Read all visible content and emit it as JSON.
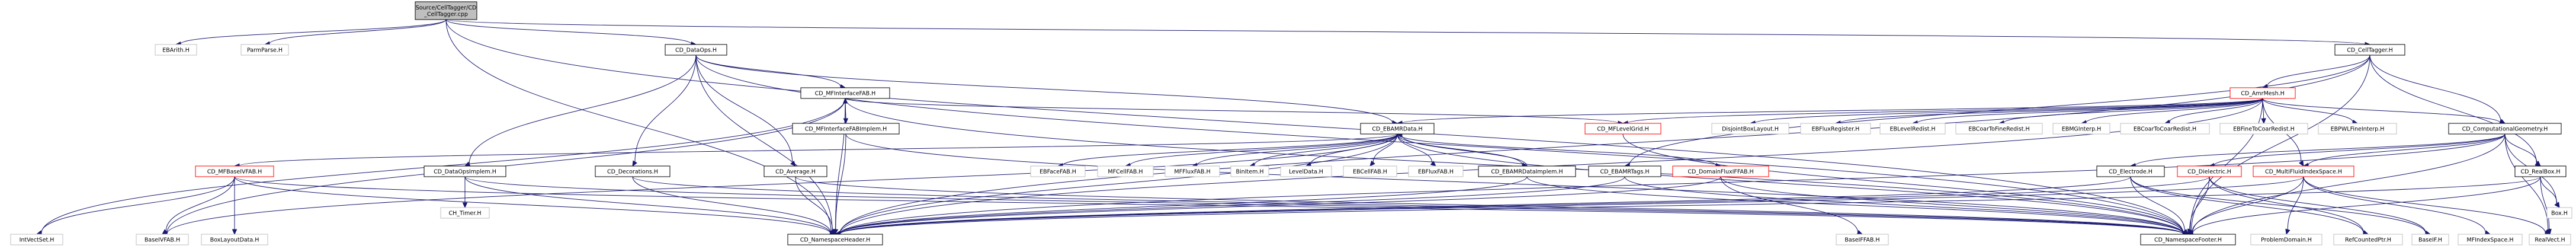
{
  "nodes": [
    {
      "id": "root",
      "lines": [
        "Source/CellTagger/CD",
        "_CellTagger.cpp"
      ],
      "kind": "root"
    },
    {
      "id": "EBArith",
      "lines": [
        "EBArith.H"
      ],
      "kind": "plain"
    },
    {
      "id": "ParmParse",
      "lines": [
        "ParmParse.H"
      ],
      "kind": "plain"
    },
    {
      "id": "CD_DataOps",
      "lines": [
        "CD_DataOps.H"
      ],
      "kind": "file"
    },
    {
      "id": "CD_CellTagger",
      "lines": [
        "CD_CellTagger.H"
      ],
      "kind": "file"
    },
    {
      "id": "CD_MFInterfaceFAB",
      "lines": [
        "CD_MFInterfaceFAB.H"
      ],
      "kind": "file"
    },
    {
      "id": "CD_AmrMesh",
      "lines": [
        "CD_AmrMesh.H"
      ],
      "kind": "red"
    },
    {
      "id": "CD_MFInterfaceFABImplem",
      "lines": [
        "CD_MFInterfaceFABImplem.H"
      ],
      "kind": "file"
    },
    {
      "id": "CD_EBAMRData",
      "lines": [
        "CD_EBAMRData.H"
      ],
      "kind": "file"
    },
    {
      "id": "CD_MFLevelGrid",
      "lines": [
        "CD_MFLevelGrid.H"
      ],
      "kind": "red"
    },
    {
      "id": "DisjointBoxLayout",
      "lines": [
        "DisjointBoxLayout.H"
      ],
      "kind": "plain"
    },
    {
      "id": "EBFluxRegister",
      "lines": [
        "EBFluxRegister.H"
      ],
      "kind": "plain"
    },
    {
      "id": "EBLevelRedist",
      "lines": [
        "EBLevelRedist.H"
      ],
      "kind": "plain"
    },
    {
      "id": "EBCoarToFineRedist",
      "lines": [
        "EBCoarToFineRedist.H"
      ],
      "kind": "plain"
    },
    {
      "id": "EBMGInterp",
      "lines": [
        "EBMGInterp.H"
      ],
      "kind": "plain"
    },
    {
      "id": "EBCoarToCoarRedist",
      "lines": [
        "EBCoarToCoarRedist.H"
      ],
      "kind": "plain"
    },
    {
      "id": "EBFineToCoarRedist",
      "lines": [
        "EBFineToCoarRedist.H"
      ],
      "kind": "plain"
    },
    {
      "id": "EBPWLFineInterp",
      "lines": [
        "EBPWLFineInterp.H"
      ],
      "kind": "plain"
    },
    {
      "id": "CD_ComputationalGeometry",
      "lines": [
        "CD_ComputationalGeometry.H"
      ],
      "kind": "file"
    },
    {
      "id": "CD_MFBaseIVFAB",
      "lines": [
        "CD_MFBaseIVFAB.H"
      ],
      "kind": "red"
    },
    {
      "id": "CD_DataOpsImplem",
      "lines": [
        "CD_DataOpsImplem.H"
      ],
      "kind": "file"
    },
    {
      "id": "CD_Decorations",
      "lines": [
        "CD_Decorations.H"
      ],
      "kind": "file"
    },
    {
      "id": "CD_Average",
      "lines": [
        "CD_Average.H"
      ],
      "kind": "file"
    },
    {
      "id": "EBFaceFAB",
      "lines": [
        "EBFaceFAB.H"
      ],
      "kind": "plain"
    },
    {
      "id": "MFCellFAB",
      "lines": [
        "MFCellFAB.H"
      ],
      "kind": "plain"
    },
    {
      "id": "MFFluxFAB",
      "lines": [
        "MFFluxFAB.H"
      ],
      "kind": "plain"
    },
    {
      "id": "BinItem",
      "lines": [
        "BinItem.H"
      ],
      "kind": "plain"
    },
    {
      "id": "LevelData",
      "lines": [
        "LevelData.H"
      ],
      "kind": "plain"
    },
    {
      "id": "EBCellFAB",
      "lines": [
        "EBCellFAB.H"
      ],
      "kind": "plain"
    },
    {
      "id": "EBFluxFAB",
      "lines": [
        "EBFluxFAB.H"
      ],
      "kind": "plain"
    },
    {
      "id": "CD_EBAMRDataImplem",
      "lines": [
        "CD_EBAMRDataImplem.H"
      ],
      "kind": "file"
    },
    {
      "id": "CD_EBAMRTags",
      "lines": [
        "CD_EBAMRTags.H"
      ],
      "kind": "file"
    },
    {
      "id": "CD_DomainFluxIFFAB",
      "lines": [
        "CD_DomainFluxIFFAB.H"
      ],
      "kind": "red"
    },
    {
      "id": "CD_Electrode",
      "lines": [
        "CD_Electrode.H"
      ],
      "kind": "file"
    },
    {
      "id": "CD_Dielectric",
      "lines": [
        "CD_Dielectric.H"
      ],
      "kind": "red"
    },
    {
      "id": "CD_MultiFluidIndexSpace",
      "lines": [
        "CD_MultiFluidIndexSpace.H"
      ],
      "kind": "red"
    },
    {
      "id": "CD_RealBox",
      "lines": [
        "CD_RealBox.H"
      ],
      "kind": "file"
    },
    {
      "id": "IntVectSet",
      "lines": [
        "IntVectSet.H"
      ],
      "kind": "plain"
    },
    {
      "id": "BaseIVFAB",
      "lines": [
        "BaseIVFAB.H"
      ],
      "kind": "plain"
    },
    {
      "id": "BoxLayoutData",
      "lines": [
        "BoxLayoutData.H"
      ],
      "kind": "plain"
    },
    {
      "id": "CH_Timer",
      "lines": [
        "CH_Timer.H"
      ],
      "kind": "plain"
    },
    {
      "id": "CD_NamespaceHeader",
      "lines": [
        "CD_NamespaceHeader.H"
      ],
      "kind": "file"
    },
    {
      "id": "BaseIFFAB",
      "lines": [
        "BaseIFFAB.H"
      ],
      "kind": "plain"
    },
    {
      "id": "CD_NamespaceFooter",
      "lines": [
        "CD_NamespaceFooter.H"
      ],
      "kind": "file"
    },
    {
      "id": "ProblemDomain",
      "lines": [
        "ProblemDomain.H"
      ],
      "kind": "plain"
    },
    {
      "id": "RefCountedPtr",
      "lines": [
        "RefCountedPtr.H"
      ],
      "kind": "plain"
    },
    {
      "id": "BaseIF",
      "lines": [
        "BaseIF.H"
      ],
      "kind": "plain"
    },
    {
      "id": "MFIndexSpace",
      "lines": [
        "MFIndexSpace.H"
      ],
      "kind": "plain"
    },
    {
      "id": "RealVect",
      "lines": [
        "RealVect.H"
      ],
      "kind": "plain"
    },
    {
      "id": "Box",
      "lines": [
        "Box.H"
      ],
      "kind": "plain"
    }
  ],
  "edges": [
    [
      "root",
      "EBArith"
    ],
    [
      "root",
      "ParmParse"
    ],
    [
      "root",
      "CD_DataOps"
    ],
    [
      "root",
      "CD_CellTagger"
    ],
    [
      "root",
      "CD_NamespaceHeader"
    ],
    [
      "root",
      "CD_NamespaceFooter"
    ],
    [
      "CD_DataOps",
      "CD_MFInterfaceFAB"
    ],
    [
      "CD_DataOps",
      "CD_EBAMRData"
    ],
    [
      "CD_DataOps",
      "CD_DataOpsImplem"
    ],
    [
      "CD_DataOps",
      "CD_Decorations"
    ],
    [
      "CD_DataOps",
      "CD_Average"
    ],
    [
      "CD_DataOps",
      "CD_NamespaceHeader"
    ],
    [
      "CD_DataOps",
      "CD_NamespaceFooter"
    ],
    [
      "CD_CellTagger",
      "CD_AmrMesh"
    ],
    [
      "CD_CellTagger",
      "CD_ComputationalGeometry"
    ],
    [
      "CD_CellTagger",
      "CD_EBAMRTags"
    ],
    [
      "CD_CellTagger",
      "CD_RealBox"
    ],
    [
      "CD_CellTagger",
      "CD_NamespaceHeader"
    ],
    [
      "CD_CellTagger",
      "CD_NamespaceFooter"
    ],
    [
      "CD_MFInterfaceFAB",
      "CD_MFInterfaceFABImplem"
    ],
    [
      "CD_MFInterfaceFAB",
      "CD_MFLevelGrid"
    ],
    [
      "CD_MFInterfaceFAB",
      "IntVectSet"
    ],
    [
      "CD_MFInterfaceFAB",
      "BaseIVFAB"
    ],
    [
      "CD_MFInterfaceFAB",
      "CD_NamespaceHeader"
    ],
    [
      "CD_MFInterfaceFAB",
      "CD_NamespaceFooter"
    ],
    [
      "CD_MFInterfaceFABImplem",
      "CD_MFInterfaceFAB"
    ],
    [
      "CD_MFInterfaceFABImplem",
      "CD_NamespaceHeader"
    ],
    [
      "CD_MFInterfaceFABImplem",
      "CD_NamespaceFooter"
    ],
    [
      "CD_AmrMesh",
      "CD_EBAMRData"
    ],
    [
      "CD_AmrMesh",
      "CD_MFLevelGrid"
    ],
    [
      "CD_AmrMesh",
      "DisjointBoxLayout"
    ],
    [
      "CD_AmrMesh",
      "EBFluxRegister"
    ],
    [
      "CD_AmrMesh",
      "EBLevelRedist"
    ],
    [
      "CD_AmrMesh",
      "EBCoarToFineRedist"
    ],
    [
      "CD_AmrMesh",
      "EBMGInterp"
    ],
    [
      "CD_AmrMesh",
      "EBCoarToCoarRedist"
    ],
    [
      "CD_AmrMesh",
      "EBFineToCoarRedist"
    ],
    [
      "CD_AmrMesh",
      "EBPWLFineInterp"
    ],
    [
      "CD_AmrMesh",
      "CD_ComputationalGeometry"
    ],
    [
      "CD_AmrMesh",
      "CD_MultiFluidIndexSpace"
    ],
    [
      "CD_AmrMesh",
      "CD_NamespaceHeader"
    ],
    [
      "CD_AmrMesh",
      "CD_NamespaceFooter"
    ],
    [
      "CD_EBAMRData",
      "CD_MFBaseIVFAB"
    ],
    [
      "CD_EBAMRData",
      "EBFaceFAB"
    ],
    [
      "CD_EBAMRData",
      "MFCellFAB"
    ],
    [
      "CD_EBAMRData",
      "MFFluxFAB"
    ],
    [
      "CD_EBAMRData",
      "BinItem"
    ],
    [
      "CD_EBAMRData",
      "LevelData"
    ],
    [
      "CD_EBAMRData",
      "EBCellFAB"
    ],
    [
      "CD_EBAMRData",
      "EBFluxFAB"
    ],
    [
      "CD_EBAMRData",
      "CD_EBAMRDataImplem"
    ],
    [
      "CD_EBAMRData",
      "CD_DomainFluxIFFAB"
    ],
    [
      "CD_EBAMRData",
      "BaseIVFAB"
    ],
    [
      "CD_EBAMRData",
      "CD_NamespaceHeader"
    ],
    [
      "CD_EBAMRData",
      "CD_NamespaceFooter"
    ],
    [
      "CD_EBAMRDataImplem",
      "CD_EBAMRData"
    ],
    [
      "CD_EBAMRDataImplem",
      "CD_NamespaceHeader"
    ],
    [
      "CD_EBAMRDataImplem",
      "CD_NamespaceFooter"
    ],
    [
      "CD_MFLevelGrid",
      "CD_NamespaceFooter"
    ],
    [
      "CD_MFBaseIVFAB",
      "IntVectSet"
    ],
    [
      "CD_MFBaseIVFAB",
      "BaseIVFAB"
    ],
    [
      "CD_MFBaseIVFAB",
      "BoxLayoutData"
    ],
    [
      "CD_MFBaseIVFAB",
      "CD_NamespaceHeader"
    ],
    [
      "CD_MFBaseIVFAB",
      "CD_NamespaceFooter"
    ],
    [
      "CD_DataOpsImplem",
      "CH_Timer"
    ],
    [
      "CD_DataOpsImplem",
      "CD_NamespaceHeader"
    ],
    [
      "CD_DataOpsImplem",
      "CD_NamespaceFooter"
    ],
    [
      "CD_Decorations",
      "CD_NamespaceHeader"
    ],
    [
      "CD_Decorations",
      "CD_NamespaceFooter"
    ],
    [
      "CD_Average",
      "CD_NamespaceHeader"
    ],
    [
      "CD_Average",
      "CD_NamespaceFooter"
    ],
    [
      "CD_EBAMRTags",
      "CD_NamespaceHeader"
    ],
    [
      "CD_EBAMRTags",
      "CD_NamespaceFooter"
    ],
    [
      "CD_DomainFluxIFFAB",
      "BaseIFFAB"
    ],
    [
      "CD_DomainFluxIFFAB",
      "CD_NamespaceHeader"
    ],
    [
      "CD_DomainFluxIFFAB",
      "CD_NamespaceFooter"
    ],
    [
      "CD_ComputationalGeometry",
      "CD_Electrode"
    ],
    [
      "CD_ComputationalGeometry",
      "CD_Dielectric"
    ],
    [
      "CD_ComputationalGeometry",
      "CD_MultiFluidIndexSpace"
    ],
    [
      "CD_ComputationalGeometry",
      "CD_RealBox"
    ],
    [
      "CD_ComputationalGeometry",
      "RealVect"
    ],
    [
      "CD_ComputationalGeometry",
      "Box"
    ],
    [
      "CD_ComputationalGeometry",
      "CD_NamespaceHeader"
    ],
    [
      "CD_ComputationalGeometry",
      "CD_NamespaceFooter"
    ],
    [
      "CD_Electrode",
      "RefCountedPtr"
    ],
    [
      "CD_Electrode",
      "BaseIF"
    ],
    [
      "CD_Electrode",
      "CD_NamespaceHeader"
    ],
    [
      "CD_Electrode",
      "CD_NamespaceFooter"
    ],
    [
      "CD_Dielectric",
      "RefCountedPtr"
    ],
    [
      "CD_Dielectric",
      "BaseIF"
    ],
    [
      "CD_Dielectric",
      "CD_NamespaceHeader"
    ],
    [
      "CD_Dielectric",
      "CD_NamespaceFooter"
    ],
    [
      "CD_MultiFluidIndexSpace",
      "ProblemDomain"
    ],
    [
      "CD_MultiFluidIndexSpace",
      "MFIndexSpace"
    ],
    [
      "CD_MultiFluidIndexSpace",
      "RealVect"
    ],
    [
      "CD_MultiFluidIndexSpace",
      "CD_NamespaceHeader"
    ],
    [
      "CD_MultiFluidIndexSpace",
      "CD_NamespaceFooter"
    ],
    [
      "CD_RealBox",
      "RealVect"
    ],
    [
      "CD_RealBox",
      "Box"
    ],
    [
      "CD_RealBox",
      "CD_NamespaceHeader"
    ],
    [
      "CD_RealBox",
      "CD_NamespaceFooter"
    ]
  ],
  "colors": {
    "edge": "#191970",
    "root_fill": "#bfbfbf",
    "file_border": "#000000",
    "red_border": "#ff0000",
    "plain_border": "#bfbfbf"
  }
}
